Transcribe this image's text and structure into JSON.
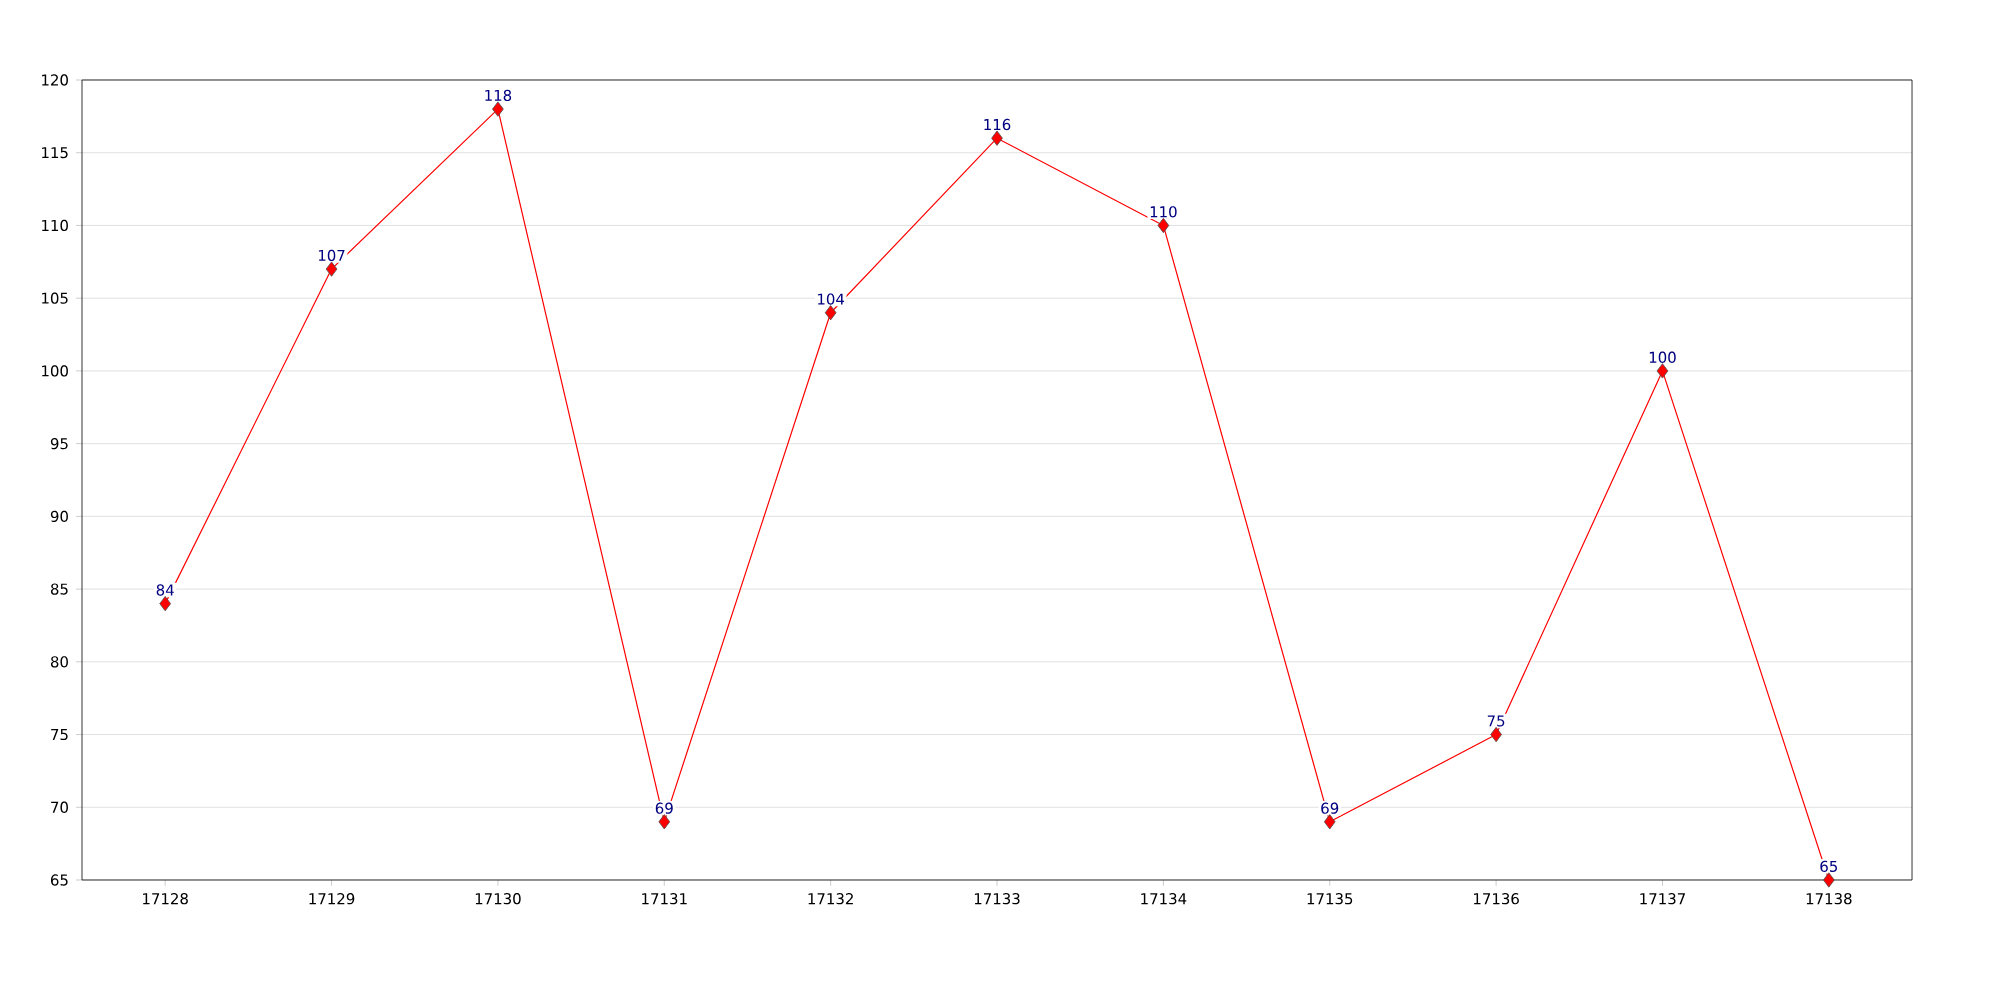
{
  "chart_data": {
    "type": "line",
    "categories": [
      "17128",
      "17129",
      "17130",
      "17131",
      "17132",
      "17133",
      "17134",
      "17135",
      "17136",
      "17137",
      "17138"
    ],
    "values": [
      84,
      107,
      118,
      69,
      104,
      116,
      110,
      69,
      75,
      100,
      65
    ],
    "color": "#ff0000",
    "ylim": [
      65,
      120
    ],
    "yticks": [
      65,
      70,
      75,
      80,
      85,
      90,
      95,
      100,
      105,
      110,
      115,
      120
    ],
    "grid": "y",
    "marker": "diamond",
    "line_style": "solid",
    "data_labels": true
  }
}
